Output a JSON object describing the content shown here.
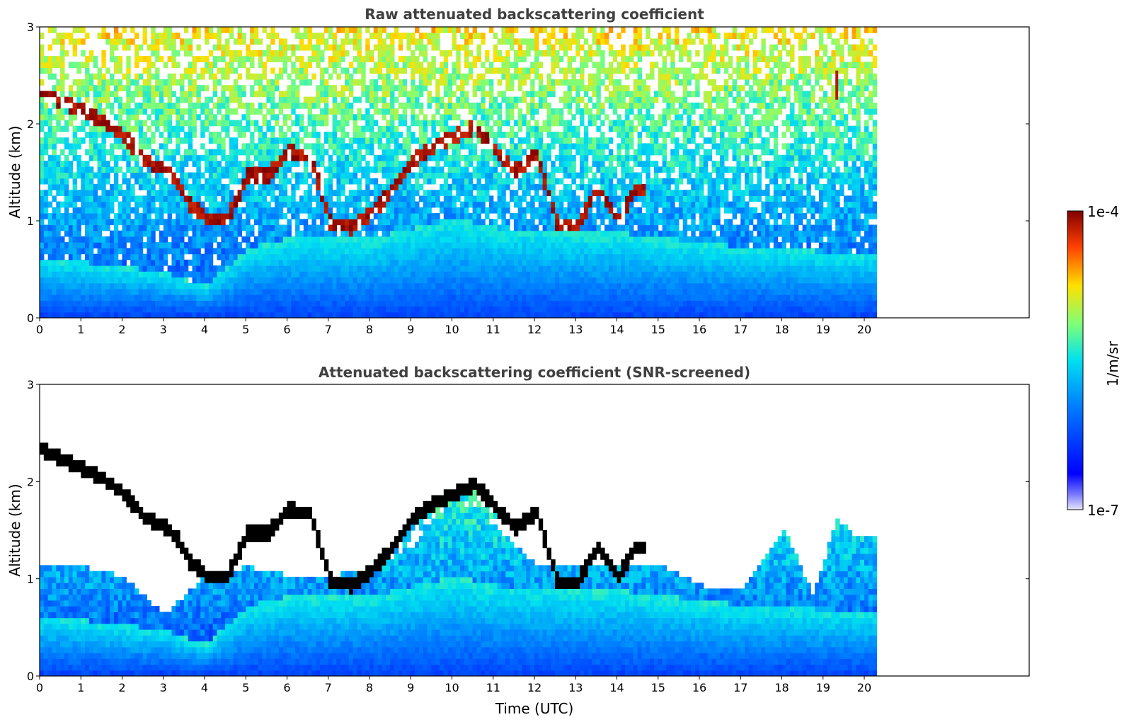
{
  "figure": {
    "panels": [
      {
        "title": "Raw attenuated backscattering coefficient",
        "ylabel": "Altitude (km)",
        "xlabel": "",
        "screened": false
      },
      {
        "title": "Attenuated backscattering coefficient (SNR-screened)",
        "ylabel": "Altitude (km)",
        "xlabel": "Time (UTC)",
        "screened": true
      }
    ],
    "colorbar": {
      "label": "1/m/sr",
      "max_label": "1e-4",
      "min_label": "1e-7",
      "colormap": "jet",
      "min_color": "#e6e6fa",
      "max_color": "#800000"
    }
  },
  "chart_data": [
    {
      "type": "heatmap",
      "title": "Raw attenuated backscattering coefficient",
      "xlabel": "",
      "ylabel": "Altitude (km)",
      "xlim": [
        0,
        24
      ],
      "ylim": [
        0,
        3
      ],
      "xticks": [
        0,
        1,
        2,
        3,
        4,
        5,
        6,
        7,
        8,
        9,
        10,
        11,
        12,
        13,
        14,
        15,
        16,
        17,
        18,
        19,
        20
      ],
      "yticks": [
        0,
        1,
        2,
        3
      ],
      "data_end_time": 20.3,
      "scale": "log",
      "clim": [
        "1e-7",
        "1e-4"
      ],
      "cloud_layer_altitude_km": {
        "time": [
          0,
          0.5,
          1,
          1.5,
          2,
          2.5,
          3,
          3.3,
          3.6,
          4,
          4.5,
          5,
          5.5,
          6,
          6.5,
          7,
          7.5,
          8,
          8.5,
          9,
          9.5,
          10,
          10.5,
          11,
          11.5,
          12,
          12.5,
          13,
          13.5,
          14,
          14.4,
          19.3
        ],
        "altitude": [
          2.3,
          2.2,
          2.1,
          2.0,
          1.85,
          1.6,
          1.5,
          1.38,
          1.15,
          1.0,
          1.0,
          1.45,
          1.45,
          1.68,
          1.65,
          0.95,
          0.9,
          1.05,
          1.3,
          1.6,
          1.75,
          1.85,
          1.95,
          1.7,
          1.5,
          1.65,
          0.95,
          0.95,
          1.3,
          1.0,
          1.3,
          2.4
        ]
      },
      "boundary_layer_top_km": {
        "time": [
          0,
          2,
          3,
          4,
          5,
          6,
          7,
          8,
          9,
          10,
          11,
          12,
          13,
          14,
          15,
          16,
          17,
          18,
          19,
          20.3
        ],
        "altitude": [
          0.6,
          0.5,
          0.45,
          0.3,
          0.7,
          0.8,
          0.8,
          0.8,
          0.9,
          1.0,
          0.9,
          0.9,
          0.85,
          0.85,
          0.8,
          0.75,
          0.7,
          0.7,
          0.65,
          0.65
        ]
      }
    },
    {
      "type": "heatmap",
      "title": "Attenuated backscattering coefficient (SNR-screened)",
      "xlabel": "Time (UTC)",
      "ylabel": "Altitude (km)",
      "xlim": [
        0,
        24
      ],
      "ylim": [
        0,
        3
      ],
      "xticks": [
        0,
        1,
        2,
        3,
        4,
        5,
        6,
        7,
        8,
        9,
        10,
        11,
        12,
        13,
        14,
        15,
        16,
        17,
        18,
        19,
        20
      ],
      "yticks": [
        0,
        1,
        2,
        3
      ],
      "data_end_time": 20.3,
      "scale": "log",
      "clim": [
        "1e-7",
        "1e-4"
      ],
      "screened_signal_top_km": {
        "time": [
          0,
          1,
          2,
          3,
          4,
          5,
          6,
          7,
          8,
          9,
          10,
          11,
          12,
          13,
          14,
          15,
          16,
          17,
          18,
          18.7,
          19.3,
          19.8,
          20.3
        ],
        "altitude": [
          1.1,
          1.1,
          1.0,
          0.6,
          1.0,
          1.1,
          1.0,
          1.0,
          1.1,
          1.3,
          1.8,
          1.5,
          1.1,
          1.1,
          1.1,
          1.1,
          0.9,
          0.9,
          1.5,
          0.8,
          1.6,
          1.4,
          1.4
        ]
      }
    }
  ]
}
